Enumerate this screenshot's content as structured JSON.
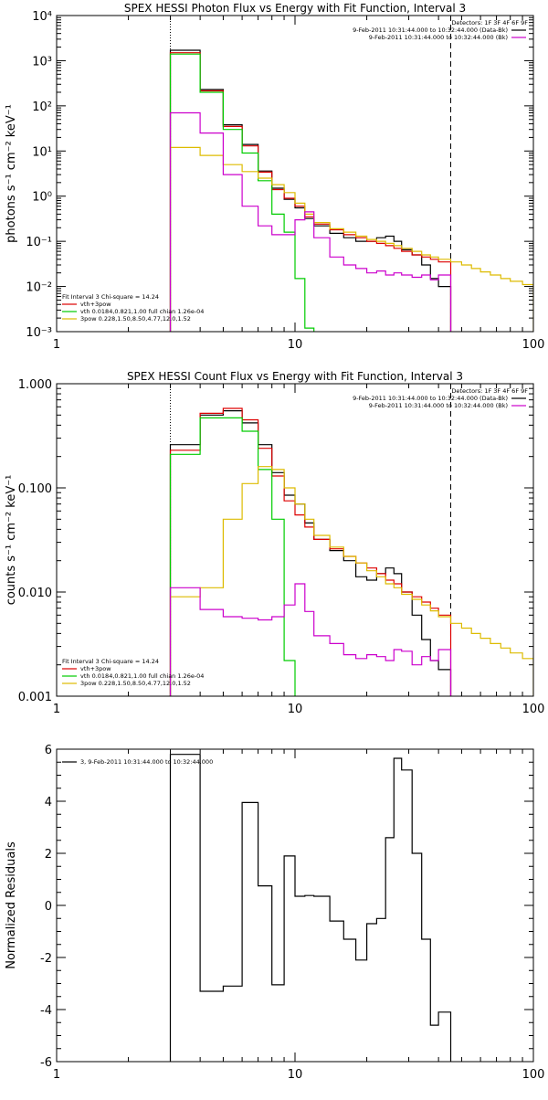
{
  "chart_data": [
    {
      "type": "line",
      "title": "SPEX HESSI Photon Flux vs Energy with Fit Function, Interval 3",
      "ylabel": "photons s⁻¹ cm⁻² keV⁻¹",
      "xlabel": "",
      "x_scale": "log",
      "y_scale": "log",
      "xlim": [
        1,
        100
      ],
      "ylim": [
        0.001,
        10000
      ],
      "x_ticks": [
        1,
        10,
        100
      ],
      "x_tick_labels": [
        "1",
        "10",
        "100"
      ],
      "y_ticks": [
        0.001,
        0.01,
        0.1,
        1,
        10,
        100,
        1000,
        10000
      ],
      "y_tick_labels": [
        "10⁻³",
        "10⁻²",
        "10⁻¹",
        "10⁰",
        "10¹",
        "10²",
        "10³",
        "10⁴"
      ],
      "grid": false,
      "vlines": [
        {
          "x": 3,
          "style": "dotted"
        },
        {
          "x": 45,
          "style": "dashed"
        }
      ],
      "legend_right": {
        "lines": [
          "Detectors: 1F 3F 4F 6F 9F",
          "9-Feb-2011 10:31:44.000 to 10:32:44.000 (Data-Bk)",
          "9-Feb-2011 10:31:44.000 to 10:32:44.000 (Bk)"
        ],
        "colors": [
          "",
          "#000000",
          "#cc00cc"
        ]
      },
      "legend_left": {
        "lines": [
          "Fit Interval 3   Chi-square = 14.24",
          "vth+3pow",
          "vth 0.0184,0.821,1.00  full chian 1.26e-04",
          "3pow 0.228,1.50,8.50,4.77,12.0,1.52"
        ],
        "colors": [
          "",
          "#dd0000",
          "#00cc00",
          "#ddbb00"
        ]
      },
      "series": [
        {
          "name": "Data-Bk",
          "color": "#000000",
          "edges": [
            3,
            4,
            5,
            6,
            7,
            8,
            9,
            10,
            11,
            12,
            14,
            16,
            18,
            20,
            22,
            24,
            26,
            28,
            31,
            34,
            37,
            40,
            45
          ],
          "values": [
            1700,
            230,
            38,
            14,
            3.6,
            1.5,
            0.85,
            0.55,
            0.32,
            0.22,
            0.15,
            0.12,
            0.1,
            0.1,
            0.12,
            0.13,
            0.1,
            0.065,
            0.05,
            0.03,
            0.015,
            0.01
          ]
        },
        {
          "name": "vth+3pow",
          "color": "#dd0000",
          "edges": [
            3,
            4,
            5,
            6,
            7,
            8,
            9,
            10,
            11,
            12,
            14,
            16,
            18,
            20,
            22,
            24,
            26,
            28,
            31,
            34,
            37,
            40,
            45
          ],
          "values": [
            1500,
            215,
            35,
            13,
            3.4,
            1.4,
            0.9,
            0.6,
            0.35,
            0.24,
            0.18,
            0.14,
            0.12,
            0.1,
            0.09,
            0.08,
            0.07,
            0.06,
            0.05,
            0.045,
            0.04,
            0.035
          ]
        },
        {
          "name": "vth",
          "color": "#00cc00",
          "edges": [
            3,
            4,
            5,
            6,
            7,
            8,
            9,
            10,
            11,
            12
          ],
          "values": [
            1400,
            200,
            30,
            9,
            2.2,
            0.4,
            0.16,
            0.015,
            0.0012
          ]
        },
        {
          "name": "3pow",
          "color": "#ddbb00",
          "edges": [
            3,
            4,
            5,
            6,
            7,
            8,
            9,
            10,
            11,
            12,
            14,
            16,
            18,
            20,
            22,
            24,
            26,
            28,
            31,
            34,
            37,
            40,
            45,
            50,
            55,
            60,
            66,
            73,
            80,
            90,
            100
          ],
          "values": [
            12,
            8,
            5,
            3.5,
            2.5,
            1.8,
            1.2,
            0.7,
            0.4,
            0.26,
            0.19,
            0.16,
            0.13,
            0.11,
            0.1,
            0.09,
            0.08,
            0.07,
            0.06,
            0.05,
            0.045,
            0.04,
            0.035,
            0.03,
            0.025,
            0.021,
            0.018,
            0.015,
            0.013,
            0.011
          ]
        },
        {
          "name": "Bk",
          "color": "#cc00cc",
          "edges": [
            3,
            4,
            5,
            6,
            7,
            8,
            9,
            10,
            11,
            12,
            14,
            16,
            18,
            20,
            22,
            24,
            26,
            28,
            31,
            34,
            37,
            40,
            45
          ],
          "values": [
            70,
            25,
            3,
            0.6,
            0.22,
            0.14,
            0.14,
            0.3,
            0.45,
            0.12,
            0.045,
            0.03,
            0.025,
            0.02,
            0.022,
            0.018,
            0.02,
            0.018,
            0.016,
            0.018,
            0.014,
            0.018
          ]
        }
      ]
    },
    {
      "type": "line",
      "title": "SPEX HESSI Count Flux vs Energy with Fit Function, Interval 3",
      "ylabel": "counts s⁻¹ cm⁻² keV⁻¹",
      "xlabel": "",
      "x_scale": "log",
      "y_scale": "log",
      "xlim": [
        1,
        100
      ],
      "ylim": [
        0.001,
        1
      ],
      "x_ticks": [
        1,
        10,
        100
      ],
      "x_tick_labels": [
        "1",
        "10",
        "100"
      ],
      "y_ticks": [
        0.001,
        0.01,
        0.1,
        1
      ],
      "y_tick_labels": [
        "0.001",
        "0.010",
        "0.100",
        "1.000"
      ],
      "grid": false,
      "vlines": [
        {
          "x": 3,
          "style": "dotted"
        },
        {
          "x": 45,
          "style": "dashed"
        }
      ],
      "legend_right": {
        "lines": [
          "Detectors: 1F 3F 4F 6F 9F",
          "9-Feb-2011 10:31:44.000 to 10:32:44.000 (Data-Bk)",
          "9-Feb-2011 10:31:44.000 to 10:32:44.000 (Bk)"
        ],
        "colors": [
          "",
          "#000000",
          "#cc00cc"
        ]
      },
      "legend_left": {
        "lines": [
          "Fit Interval 3   Chi-square = 14.24",
          "vth+3pow",
          "vth 0.0184,0.821,1.00  full chian 1.26e-04",
          "3pow 0.228,1.50,8.50,4.77,12.0,1.52"
        ],
        "colors": [
          "",
          "#dd0000",
          "#00cc00",
          "#ddbb00"
        ]
      },
      "series": [
        {
          "name": "Data-Bk",
          "color": "#000000",
          "edges": [
            3,
            4,
            5,
            6,
            7,
            8,
            9,
            10,
            11,
            12,
            14,
            16,
            18,
            20,
            22,
            24,
            26,
            28,
            31,
            34,
            37,
            40,
            45
          ],
          "values": [
            0.26,
            0.5,
            0.55,
            0.42,
            0.26,
            0.14,
            0.085,
            0.07,
            0.046,
            0.032,
            0.025,
            0.02,
            0.014,
            0.013,
            0.015,
            0.017,
            0.015,
            0.01,
            0.006,
            0.0035,
            0.0022,
            0.0018
          ]
        },
        {
          "name": "vth+3pow",
          "color": "#dd0000",
          "edges": [
            3,
            4,
            5,
            6,
            7,
            8,
            9,
            10,
            11,
            12,
            14,
            16,
            18,
            20,
            22,
            24,
            26,
            28,
            31,
            34,
            37,
            40,
            45
          ],
          "values": [
            0.23,
            0.52,
            0.58,
            0.45,
            0.24,
            0.13,
            0.075,
            0.055,
            0.042,
            0.032,
            0.026,
            0.022,
            0.019,
            0.017,
            0.015,
            0.013,
            0.012,
            0.01,
            0.009,
            0.008,
            0.007,
            0.006
          ]
        },
        {
          "name": "vth",
          "color": "#00cc00",
          "edges": [
            3,
            4,
            5,
            6,
            7,
            8,
            9,
            10
          ],
          "values": [
            0.21,
            0.47,
            0.47,
            0.35,
            0.15,
            0.05,
            0.0022
          ]
        },
        {
          "name": "3pow",
          "color": "#ddbb00",
          "edges": [
            3,
            4,
            5,
            6,
            7,
            8,
            9,
            10,
            11,
            12,
            14,
            16,
            18,
            20,
            22,
            24,
            26,
            28,
            31,
            34,
            37,
            40,
            45,
            50,
            55,
            60,
            66,
            73,
            80,
            90,
            100
          ],
          "values": [
            0.009,
            0.011,
            0.05,
            0.11,
            0.16,
            0.15,
            0.1,
            0.07,
            0.05,
            0.035,
            0.027,
            0.022,
            0.019,
            0.016,
            0.014,
            0.012,
            0.011,
            0.0095,
            0.0085,
            0.0075,
            0.0066,
            0.0058,
            0.005,
            0.0045,
            0.004,
            0.0036,
            0.0032,
            0.0029,
            0.0026,
            0.0023
          ]
        },
        {
          "name": "Bk",
          "color": "#cc00cc",
          "edges": [
            3,
            4,
            5,
            6,
            7,
            8,
            9,
            10,
            11,
            12,
            14,
            16,
            18,
            20,
            22,
            24,
            26,
            28,
            31,
            34,
            37,
            40,
            45
          ],
          "values": [
            0.011,
            0.0068,
            0.0058,
            0.0056,
            0.0054,
            0.0058,
            0.0075,
            0.012,
            0.0065,
            0.0038,
            0.0032,
            0.0025,
            0.0023,
            0.0025,
            0.0024,
            0.0022,
            0.0028,
            0.0027,
            0.002,
            0.0024,
            0.0022,
            0.0028
          ]
        }
      ]
    },
    {
      "type": "line",
      "title": "",
      "ylabel": "Normalized Residuals",
      "xlabel": "",
      "x_scale": "log",
      "y_scale": "linear",
      "xlim": [
        1,
        100
      ],
      "ylim": [
        -6,
        6
      ],
      "x_ticks": [
        1,
        10,
        100
      ],
      "x_tick_labels": [
        "1",
        "10",
        "100"
      ],
      "y_ticks": [
        -6,
        -4,
        -2,
        0,
        2,
        4,
        6
      ],
      "y_tick_labels": [
        "-6",
        "-4",
        "-2",
        "0",
        "2",
        "4",
        "6"
      ],
      "grid": false,
      "vlines": [],
      "legend_left": {
        "lines": [
          "3,  9-Feb-2011 10:31:44.000 to 10:32:44.000"
        ],
        "colors": [
          "#000000"
        ]
      },
      "series": [
        {
          "name": "3,  9-Feb-2011 10:31:44.000 to 10:32:44.000",
          "color": "#000000",
          "edges": [
            3,
            4,
            5,
            6,
            7,
            8,
            9,
            10,
            11,
            12,
            14,
            16,
            18,
            20,
            22,
            24,
            26,
            28,
            31,
            34,
            37,
            40,
            45
          ],
          "values": [
            5.8,
            -3.3,
            -3.1,
            3.95,
            0.75,
            -3.05,
            1.9,
            0.35,
            0.38,
            0.35,
            -0.6,
            -1.3,
            -2.1,
            -0.7,
            -0.5,
            2.6,
            5.65,
            5.2,
            2.0,
            -1.3,
            -4.6,
            -4.1
          ]
        }
      ]
    }
  ]
}
